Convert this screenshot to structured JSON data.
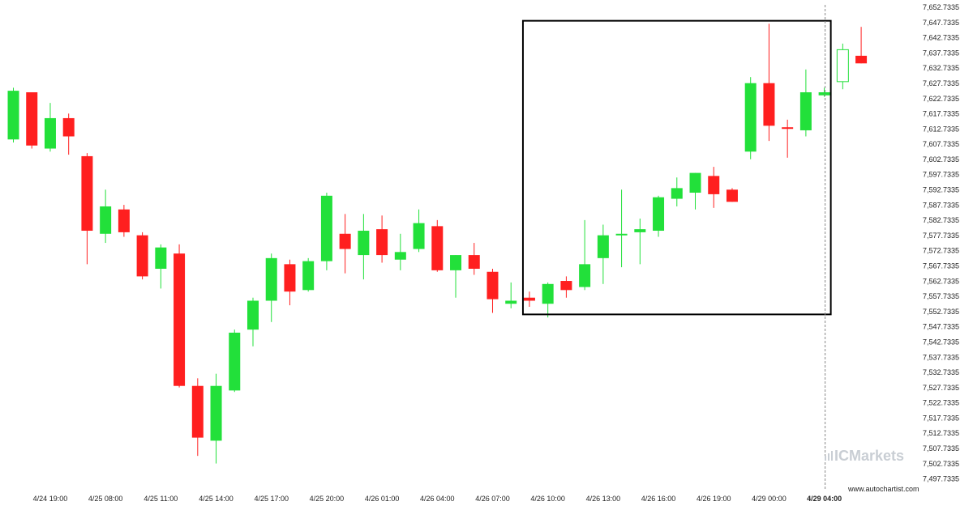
{
  "chart_data": {
    "type": "candlestick",
    "colors": {
      "up": "#22e03a",
      "down": "#ff1f1f",
      "box": "#000000",
      "current_line": "#888888",
      "watermark": "#c9ced4"
    },
    "ylim": [
      7495.2335,
      7652.7335
    ],
    "y_ticks": [
      "7,652.7335",
      "7,647.7335",
      "7,642.7335",
      "7,637.7335",
      "7,632.7335",
      "7,627.7335",
      "7,622.7335",
      "7,617.7335",
      "7,612.7335",
      "7,607.7335",
      "7,602.7335",
      "7,597.7335",
      "7,592.7335",
      "7,587.7335",
      "7,582.7335",
      "7,577.7335",
      "7,572.7335",
      "7,567.7335",
      "7,562.7335",
      "7,557.7335",
      "7,552.7335",
      "7,547.7335",
      "7,542.7335",
      "7,537.7335",
      "7,532.7335",
      "7,527.7335",
      "7,522.7335",
      "7,517.7335",
      "7,512.7335",
      "7,507.7335",
      "7,502.7335",
      "7,497.7335"
    ],
    "x_ticks": [
      {
        "label": "4/24 19:00",
        "index": 2
      },
      {
        "label": "4/25 08:00",
        "index": 5
      },
      {
        "label": "4/25 11:00",
        "index": 8
      },
      {
        "label": "4/25 14:00",
        "index": 11
      },
      {
        "label": "4/25 17:00",
        "index": 14
      },
      {
        "label": "4/25 20:00",
        "index": 17
      },
      {
        "label": "4/26 01:00",
        "index": 20
      },
      {
        "label": "4/26 04:00",
        "index": 23
      },
      {
        "label": "4/26 07:00",
        "index": 26
      },
      {
        "label": "4/26 10:00",
        "index": 29
      },
      {
        "label": "4/26 13:00",
        "index": 32
      },
      {
        "label": "4/26 16:00",
        "index": 35
      },
      {
        "label": "4/26 19:00",
        "index": 38
      },
      {
        "label": "4/29 00:00",
        "index": 41
      },
      {
        "label": "4/29 04:00",
        "index": 44,
        "bold": true
      }
    ],
    "candles": [
      {
        "o": 7609.3,
        "h": 7626.3,
        "l": 7608.3,
        "c": 7625.3
      },
      {
        "o": 7624.8,
        "h": 7624.8,
        "l": 7606.3,
        "c": 7607.3
      },
      {
        "o": 7606.3,
        "h": 7621.3,
        "l": 7605.3,
        "c": 7616.3
      },
      {
        "o": 7616.3,
        "h": 7617.8,
        "l": 7604.3,
        "c": 7610.3
      },
      {
        "o": 7603.8,
        "h": 7604.8,
        "l": 7568.3,
        "c": 7579.3
      },
      {
        "o": 7578.3,
        "h": 7592.8,
        "l": 7575.3,
        "c": 7587.3
      },
      {
        "o": 7586.3,
        "h": 7587.8,
        "l": 7577.3,
        "c": 7578.8
      },
      {
        "o": 7577.8,
        "h": 7578.8,
        "l": 7563.3,
        "c": 7564.3
      },
      {
        "o": 7566.8,
        "h": 7574.8,
        "l": 7560.3,
        "c": 7573.8
      },
      {
        "o": 7571.8,
        "h": 7574.8,
        "l": 7527.8,
        "c": 7528.3
      },
      {
        "o": 7528.3,
        "h": 7530.8,
        "l": 7505.3,
        "c": 7511.3
      },
      {
        "o": 7510.3,
        "h": 7532.3,
        "l": 7502.8,
        "c": 7528.3
      },
      {
        "o": 7526.8,
        "h": 7546.8,
        "l": 7526.3,
        "c": 7545.8
      },
      {
        "o": 7546.8,
        "h": 7557.3,
        "l": 7541.3,
        "c": 7556.3
      },
      {
        "o": 7556.3,
        "h": 7571.8,
        "l": 7549.3,
        "c": 7570.3
      },
      {
        "o": 7568.3,
        "h": 7569.8,
        "l": 7554.8,
        "c": 7559.3
      },
      {
        "o": 7559.8,
        "h": 7570.3,
        "l": 7559.3,
        "c": 7569.3
      },
      {
        "o": 7569.3,
        "h": 7591.8,
        "l": 7566.3,
        "c": 7590.8
      },
      {
        "o": 7578.3,
        "h": 7584.8,
        "l": 7565.3,
        "c": 7573.3
      },
      {
        "o": 7571.3,
        "h": 7584.8,
        "l": 7563.3,
        "c": 7579.3
      },
      {
        "o": 7579.8,
        "h": 7584.3,
        "l": 7568.8,
        "c": 7571.3
      },
      {
        "o": 7569.8,
        "h": 7578.3,
        "l": 7566.3,
        "c": 7572.3
      },
      {
        "o": 7573.3,
        "h": 7586.3,
        "l": 7572.3,
        "c": 7581.8
      },
      {
        "o": 7580.8,
        "h": 7582.8,
        "l": 7565.8,
        "c": 7566.3
      },
      {
        "o": 7566.3,
        "h": 7571.3,
        "l": 7557.3,
        "c": 7571.3
      },
      {
        "o": 7571.3,
        "h": 7575.3,
        "l": 7564.8,
        "c": 7566.8
      },
      {
        "o": 7565.8,
        "h": 7566.8,
        "l": 7552.3,
        "c": 7556.8
      },
      {
        "o": 7555.3,
        "h": 7562.3,
        "l": 7553.8,
        "c": 7556.3
      },
      {
        "o": 7557.3,
        "h": 7559.3,
        "l": 7554.3,
        "c": 7556.3
      },
      {
        "o": 7555.3,
        "h": 7562.3,
        "l": 7550.8,
        "c": 7561.8
      },
      {
        "o": 7562.8,
        "h": 7564.3,
        "l": 7557.3,
        "c": 7559.8
      },
      {
        "o": 7560.8,
        "h": 7582.8,
        "l": 7559.8,
        "c": 7568.3
      },
      {
        "o": 7570.3,
        "h": 7581.3,
        "l": 7561.8,
        "c": 7577.8
      },
      {
        "o": 7577.8,
        "h": 7592.8,
        "l": 7567.3,
        "c": 7578.3
      },
      {
        "o": 7578.8,
        "h": 7583.3,
        "l": 7568.3,
        "c": 7579.8
      },
      {
        "o": 7579.3,
        "h": 7590.8,
        "l": 7577.3,
        "c": 7590.3
      },
      {
        "o": 7589.8,
        "h": 7596.8,
        "l": 7587.3,
        "c": 7593.3
      },
      {
        "o": 7591.8,
        "h": 7598.3,
        "l": 7586.3,
        "c": 7598.3
      },
      {
        "o": 7597.3,
        "h": 7600.3,
        "l": 7586.8,
        "c": 7591.3
      },
      {
        "o": 7592.8,
        "h": 7593.3,
        "l": 7588.8,
        "c": 7588.8
      },
      {
        "o": 7605.3,
        "h": 7629.8,
        "l": 7602.8,
        "c": 7627.8
      },
      {
        "o": 7627.8,
        "h": 7647.3,
        "l": 7608.8,
        "c": 7613.8
      },
      {
        "o": 7613.3,
        "h": 7615.8,
        "l": 7603.3,
        "c": 7612.8
      },
      {
        "o": 7612.3,
        "h": 7632.3,
        "l": 7610.3,
        "c": 7624.8
      },
      {
        "o": 7623.8,
        "h": 7626.3,
        "l": 7623.3,
        "c": 7624.8
      },
      {
        "o": 7628.3,
        "h": 7640.8,
        "l": 7625.8,
        "c": 7638.8,
        "hollow": true
      },
      {
        "o": 7636.8,
        "h": 7646.3,
        "l": 7634.3,
        "c": 7634.3
      }
    ],
    "pattern_box": {
      "start_index": 28,
      "end_index": 44,
      "top": 7648.3,
      "bottom": 7551.8
    },
    "current_index": 44,
    "watermark": "ICMarkets",
    "site": "www.autochartist.com"
  }
}
